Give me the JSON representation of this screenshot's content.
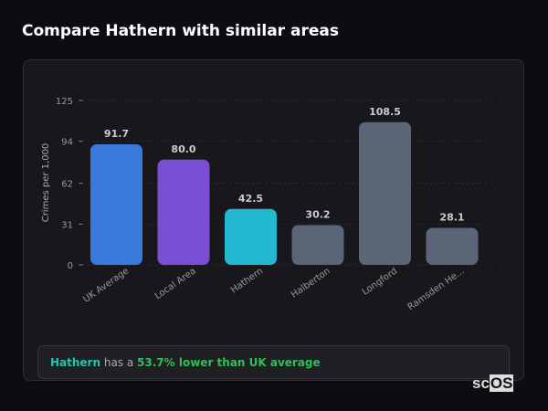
{
  "header": {
    "title": "Compare Hathern with similar areas"
  },
  "chart_data": {
    "type": "bar",
    "ylabel": "Crimes per 1,000",
    "xlabel": "",
    "ylim": [
      0,
      125
    ],
    "yticks": [
      0,
      31,
      62,
      94,
      125
    ],
    "grid": true,
    "categories": [
      "UK Average",
      "Local Area",
      "Hathern",
      "Halberton",
      "Longford",
      "Ramsden He..."
    ],
    "values": [
      91.7,
      80.0,
      42.5,
      30.2,
      108.5,
      28.1
    ],
    "value_labels": [
      "91.7",
      "80.0",
      "42.5",
      "30.2",
      "108.5",
      "28.1"
    ],
    "colors": [
      "#3a78dc",
      "#7b4fd4",
      "#22b8d0",
      "#5a6678",
      "#5a6678",
      "#5a6678"
    ]
  },
  "summary": {
    "area": "Hathern",
    "connector": " has a ",
    "comparison": "53.7% lower than UK average"
  },
  "logo": {
    "text_a": "sc",
    "text_b": "OS"
  }
}
